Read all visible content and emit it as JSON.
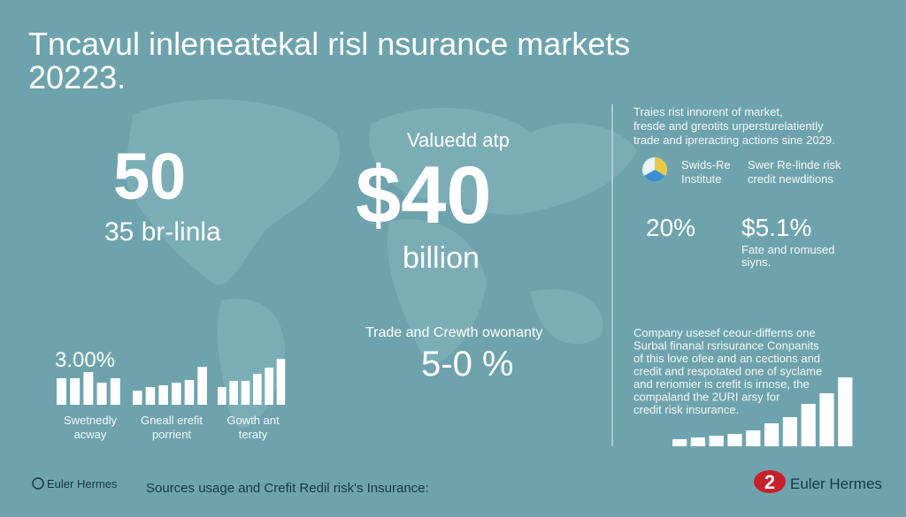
{
  "header": {
    "title_lines": [
      "Tncavul inleneatekal risl nsurance markets",
      "20223."
    ]
  },
  "left_stat": {
    "value": "50",
    "caption": "35 br-linla"
  },
  "center_stat": {
    "label": "Valuedd atp",
    "value": "$40",
    "unit": "billion"
  },
  "growth": {
    "label": "Trade and Crewth owonanty",
    "value": "5-0 %"
  },
  "bars_stat": "3.00%",
  "bar_charts": [
    {
      "values": [
        30,
        30,
        37,
        25,
        30
      ],
      "label_lines": [
        "Swetnedly",
        "acway"
      ]
    },
    {
      "values": [
        16,
        20,
        22,
        25,
        28,
        43
      ],
      "label_lines": [
        "Gneall erefit",
        "porrient"
      ]
    },
    {
      "values": [
        20,
        27,
        27,
        35,
        42,
        52
      ],
      "label_lines": [
        "Gowth ant",
        "teraty"
      ]
    }
  ],
  "right_intro": [
    "Traies rist innorent of market,",
    "fresde and greotits urpersturelatiently",
    "trade and ipreracting actions sine 2029."
  ],
  "sources": [
    {
      "lines": [
        "Swids-Re",
        "Institute"
      ]
    },
    {
      "lines": [
        "Swer Re-linde risk",
        "credit newditions"
      ]
    }
  ],
  "right_stats": [
    {
      "value": "20%"
    },
    {
      "value": "$5.1%",
      "caption_lines": [
        "Fate and romused",
        "siyns."
      ]
    }
  ],
  "right_paragraph": [
    "Company usesef ceour-differns one",
    "Surbal finanal rsrisurance Conpanits",
    "of this love ofee and an cections and",
    "credit and respotated one of syclame",
    "and reriomier is crefit is irnose, the",
    "compaland the 2URI arsy for",
    "credit risk insurance."
  ],
  "right_chart": {
    "values": [
      8,
      10,
      12,
      14,
      18,
      26,
      33,
      48,
      60,
      78
    ]
  },
  "footer": {
    "left_brand": "Euler Hermes",
    "source": "Sources usage and Crefit Redil risk's Insurance:",
    "logo_number": "2",
    "right_brand": "Euler Hermes"
  }
}
